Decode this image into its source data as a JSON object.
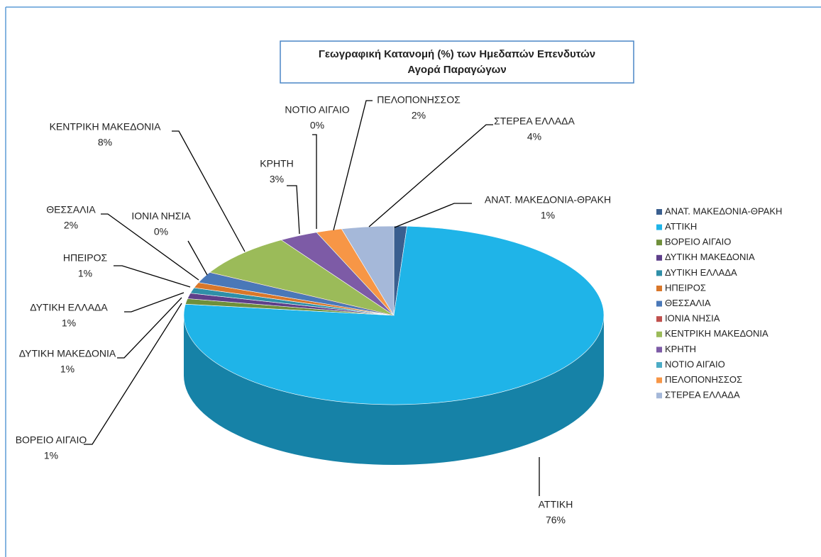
{
  "chart_data": {
    "type": "pie3d",
    "title": [
      "Γεωγραφική Κατανομή (%) των Ημεδαπών Επενδυτών",
      "Αγορά Παραγώγων"
    ],
    "categories": [
      "ΑΝΑΤ. ΜΑΚΕΔΟΝΙΑ-ΘΡΑΚΗ",
      "ΑΤΤΙΚΗ",
      "ΒΟΡΕΙΟ ΑΙΓΑΙΟ",
      "ΔΥΤΙΚΗ ΜΑΚΕΔΟΝΙΑ",
      "ΔΥΤΙΚΗ ΕΛΛΑΔΑ",
      "ΗΠΕΙΡΟΣ",
      "ΘΕΣΣΑΛΙΑ",
      "ΙΟΝΙΑ ΝΗΣΙΑ",
      "ΚΕΝΤΡΙΚΗ ΜΑΚΕΔΟΝΙΑ",
      "ΚΡΗΤΗ",
      "ΝΟΤΙΟ ΑΙΓΑΙΟ",
      "ΠΕΛΟΠΟΝΗΣΣΟΣ",
      "ΣΤΕΡΕΑ ΕΛΛΑΔΑ"
    ],
    "values": [
      1,
      76,
      1,
      1,
      1,
      1,
      2,
      0,
      8,
      3,
      0,
      2,
      4
    ],
    "value_labels": [
      "1%",
      "76%",
      "1%",
      "1%",
      "1%",
      "1%",
      "2%",
      "0%",
      "8%",
      "3%",
      "0%",
      "2%",
      "4%"
    ],
    "colors": [
      "#3a5f8f",
      "#1fb4e8",
      "#6f8f3a",
      "#5e3f8a",
      "#2f8fa8",
      "#d9772a",
      "#4a78b8",
      "#c0504d",
      "#9bbb59",
      "#7d5ba6",
      "#4bacc6",
      "#f79646",
      "#a5b8d9"
    ],
    "legend": "right"
  }
}
